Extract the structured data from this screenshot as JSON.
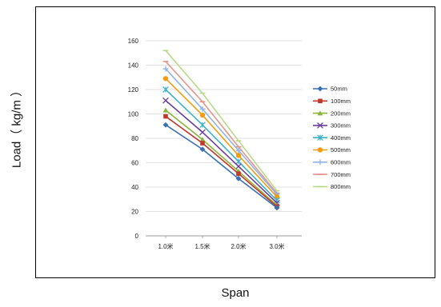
{
  "chart_data": {
    "type": "line",
    "xlabel": "Span",
    "ylabel": "Load（ kg/m ）",
    "categories": [
      "1.0米",
      "1.5米",
      "2.0米",
      "3.0米"
    ],
    "ylim": [
      0,
      160
    ],
    "yticks": [
      0,
      20,
      40,
      60,
      80,
      100,
      120,
      140,
      160
    ],
    "grid": "horizontal",
    "legend": "right",
    "series": [
      {
        "name": "50mm",
        "color": "#3a6fb5",
        "marker": "diamond",
        "values": [
          91,
          71,
          47,
          23
        ]
      },
      {
        "name": "100mm",
        "color": "#c0392b",
        "marker": "square",
        "values": [
          98,
          76,
          51,
          24
        ]
      },
      {
        "name": "200mm",
        "color": "#8db33a",
        "marker": "triangle",
        "values": [
          103,
          79,
          53,
          25
        ]
      },
      {
        "name": "300mm",
        "color": "#6a3d9a",
        "marker": "x",
        "values": [
          111,
          85,
          57,
          27
        ]
      },
      {
        "name": "400mm",
        "color": "#3bb0c9",
        "marker": "star",
        "values": [
          120,
          91,
          61,
          29
        ]
      },
      {
        "name": "500mm",
        "color": "#f39c12",
        "marker": "circle",
        "values": [
          129,
          99,
          66,
          32
        ]
      },
      {
        "name": "600mm",
        "color": "#8fb3e8",
        "marker": "plus",
        "values": [
          137,
          104,
          70,
          34
        ]
      },
      {
        "name": "700mm",
        "color": "#e8938a",
        "marker": "dash",
        "values": [
          143,
          110,
          73,
          35
        ]
      },
      {
        "name": "800mm",
        "color": "#b9d98a",
        "marker": "dash",
        "values": [
          152,
          117,
          78,
          37
        ]
      }
    ]
  }
}
